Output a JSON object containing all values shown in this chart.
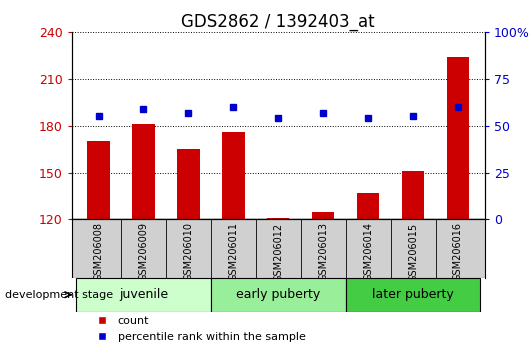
{
  "title": "GDS2862 / 1392403_at",
  "samples": [
    "GSM206008",
    "GSM206009",
    "GSM206010",
    "GSM206011",
    "GSM206012",
    "GSM206013",
    "GSM206014",
    "GSM206015",
    "GSM206016"
  ],
  "counts": [
    170,
    181,
    165,
    176,
    121,
    125,
    137,
    151,
    224
  ],
  "percentiles": [
    55,
    59,
    57,
    60,
    54,
    57,
    54,
    55,
    60
  ],
  "ymin": 120,
  "ymax": 240,
  "yticks": [
    120,
    150,
    180,
    210,
    240
  ],
  "y2min": 0,
  "y2max": 100,
  "y2ticks": [
    0,
    25,
    50,
    75,
    100
  ],
  "y2ticklabels": [
    "0",
    "25",
    "50",
    "75",
    "100%"
  ],
  "bar_color": "#cc0000",
  "dot_color": "#0000cc",
  "groups": [
    {
      "label": "juvenile",
      "start": 0,
      "end": 3,
      "color": "#ccffcc"
    },
    {
      "label": "early puberty",
      "start": 3,
      "end": 6,
      "color": "#99ee99"
    },
    {
      "label": "later puberty",
      "start": 6,
      "end": 9,
      "color": "#44cc44"
    }
  ],
  "dev_stage_label": "development stage",
  "legend_count": "count",
  "legend_pct": "percentile rank within the sample",
  "title_fontsize": 12,
  "axis_color_left": "#cc0000",
  "axis_color_right": "#0000cc",
  "gray_bg": "#d0d0d0"
}
